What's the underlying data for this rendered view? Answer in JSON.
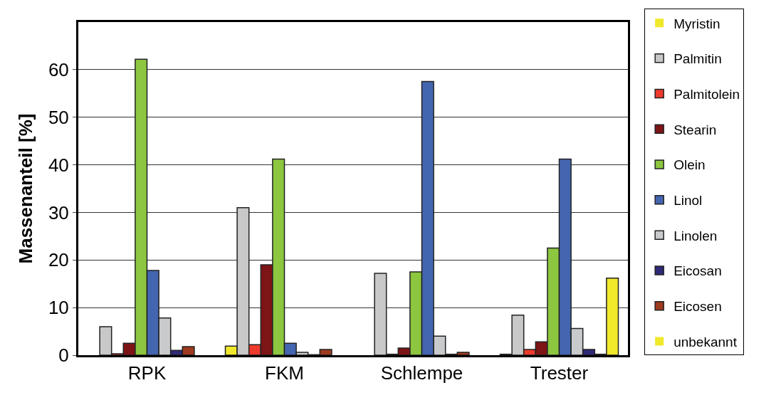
{
  "chart_data": {
    "type": "bar",
    "ylabel": "Massenanteil [%]",
    "categories": [
      "RPK",
      "FKM",
      "Schlempe",
      "Trester"
    ],
    "series": [
      {
        "name": "Myristin",
        "color": "#f0e82a",
        "values": [
          0,
          1.9,
          0,
          0.2
        ]
      },
      {
        "name": "Palmitin",
        "color": "#c8c8c8",
        "values": [
          6,
          31,
          17.2,
          8.4
        ]
      },
      {
        "name": "Palmitolein",
        "color": "#ee3a2c",
        "values": [
          0.3,
          2.2,
          0.2,
          1.2
        ]
      },
      {
        "name": "Stearin",
        "color": "#7d1416",
        "values": [
          2.5,
          19,
          1.5,
          2.8
        ]
      },
      {
        "name": "Olein",
        "color": "#8dc63f",
        "values": [
          62.2,
          41.2,
          17.5,
          22.5
        ]
      },
      {
        "name": "Linol",
        "color": "#4466b0",
        "values": [
          17.8,
          2.5,
          57.5,
          41.2
        ]
      },
      {
        "name": "Linolen",
        "color": "#c8cacc",
        "values": [
          7.8,
          0.6,
          4,
          5.6
        ]
      },
      {
        "name": "Eicosan",
        "color": "#2e2a78",
        "values": [
          1.0,
          0.1,
          0.2,
          1.2
        ]
      },
      {
        "name": "Eicosen",
        "color": "#9e3a20",
        "values": [
          1.8,
          1.2,
          0.6,
          0.2
        ]
      },
      {
        "name": "unbekannt",
        "color": "#f0e82a",
        "values": [
          0,
          0,
          0,
          16.2
        ]
      }
    ],
    "ylim": [
      0,
      70
    ],
    "yticks": [
      0,
      10,
      20,
      30,
      40,
      50,
      60
    ],
    "grid": "y",
    "legend": "right"
  }
}
